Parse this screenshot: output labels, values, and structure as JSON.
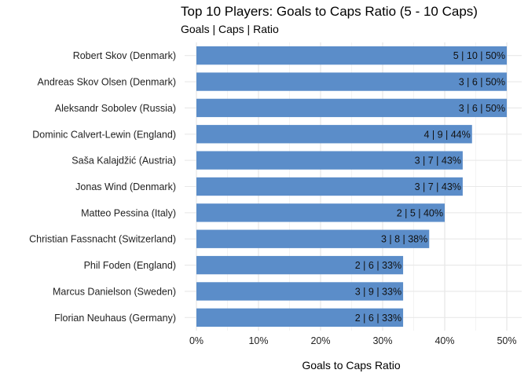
{
  "chart_data": {
    "type": "bar",
    "orientation": "horizontal",
    "title": "Top 10 Players: Goals to Caps Ratio (5 - 10 Caps)",
    "subtitle": "Goals | Caps | Ratio",
    "xlabel": "Goals to Caps Ratio",
    "ylabel": "",
    "xlim": [
      0,
      0.5
    ],
    "x_ticks": [
      {
        "value": 0,
        "label": "0%"
      },
      {
        "value": 0.1,
        "label": "10%"
      },
      {
        "value": 0.2,
        "label": "20%"
      },
      {
        "value": 0.3,
        "label": "30%"
      },
      {
        "value": 0.4,
        "label": "40%"
      },
      {
        "value": 0.5,
        "label": "50%"
      }
    ],
    "grid": true,
    "bar_color": "#5b8dc9",
    "categories": [
      "Robert Skov (Denmark)",
      "Andreas Skov Olsen (Denmark)",
      "Aleksandr Sobolev (Russia)",
      "Dominic Calvert-Lewin (England)",
      "Saša Kalajdžić (Austria)",
      "Jonas Wind (Denmark)",
      "Matteo Pessina (Italy)",
      "Christian Fassnacht (Switzerland)",
      "Phil Foden (England)",
      "Marcus Danielson (Sweden)",
      "Florian Neuhaus (Germany)"
    ],
    "values": [
      0.5,
      0.5,
      0.5,
      0.444,
      0.429,
      0.429,
      0.4,
      0.375,
      0.333,
      0.333,
      0.333
    ],
    "data_labels": [
      "5 | 10 | 50%",
      "3 | 6 | 50%",
      "3 | 6 | 50%",
      "4 | 9 | 44%",
      "3 | 7 | 43%",
      "3 | 7 | 43%",
      "2 | 5 | 40%",
      "3 | 8 | 38%",
      "2 | 6 | 33%",
      "3 | 9 | 33%",
      "2 | 6 | 33%"
    ]
  }
}
